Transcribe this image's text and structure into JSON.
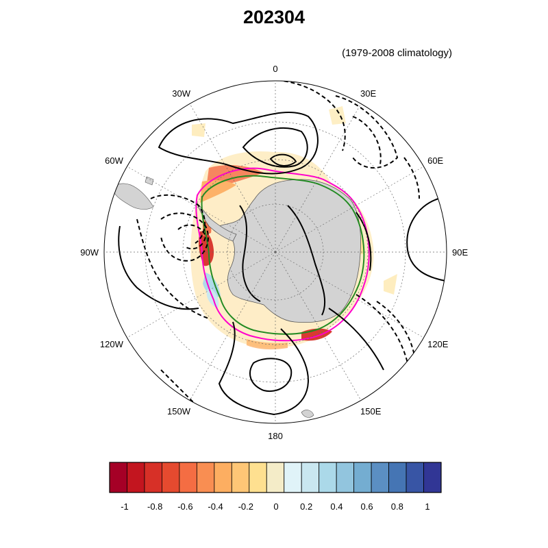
{
  "title": "202304",
  "subtitle": "(1979-2008 climatology)",
  "map": {
    "projection": "south-polar-stereographic",
    "longitude_labels": [
      {
        "name": "0",
        "lon": 0
      },
      {
        "name": "30E",
        "lon": 30
      },
      {
        "name": "60E",
        "lon": 60
      },
      {
        "name": "90E",
        "lon": 90
      },
      {
        "name": "120E",
        "lon": 120
      },
      {
        "name": "150E",
        "lon": 150
      },
      {
        "name": "180",
        "lon": 180
      },
      {
        "name": "150W",
        "lon": -150
      },
      {
        "name": "120W",
        "lon": -120
      },
      {
        "name": "90W",
        "lon": -90
      },
      {
        "name": "60W",
        "lon": -60
      },
      {
        "name": "30W",
        "lon": -30
      }
    ],
    "land_color": "#d3d3d3",
    "ice_edge_colors": {
      "observed": "#ff00cc",
      "climatology": "#228b22"
    },
    "contour_style": {
      "positive": "solid",
      "negative": "dashed"
    }
  },
  "colorbar": {
    "colors": [
      "#a50026",
      "#c3151f",
      "#d73027",
      "#e54a2f",
      "#f46d43",
      "#f98e52",
      "#fdae61",
      "#fec676",
      "#fee090",
      "#f4ecc8",
      "#e0f3f8",
      "#c9e7f0",
      "#abd9e9",
      "#92c5de",
      "#74add1",
      "#5b8fc3",
      "#4575b4",
      "#3855a5",
      "#313695"
    ],
    "tick_labels": [
      "-1",
      "-0.8",
      "-0.6",
      "-0.4",
      "-0.2",
      "0",
      "0.2",
      "0.4",
      "0.6",
      "0.8",
      "1"
    ],
    "range": [
      -1,
      1
    ]
  }
}
